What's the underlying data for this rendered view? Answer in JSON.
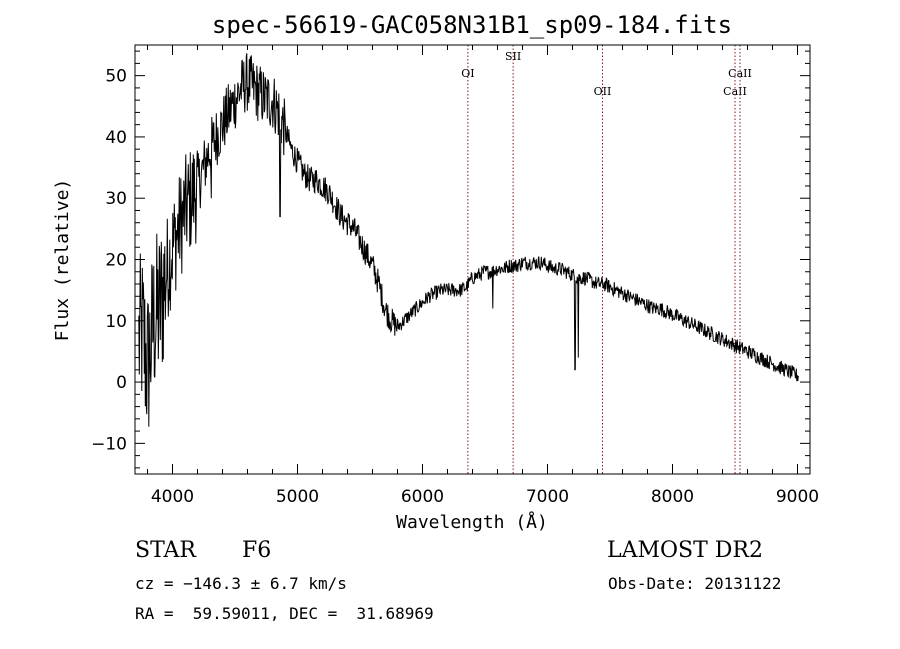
{
  "chart_data": {
    "type": "line",
    "title": "spec-56619-GAC058N31B1_sp09-184.fits",
    "xlabel": "Wavelength (Å)",
    "ylabel": "Flux (relative)",
    "xlim": [
      3700,
      9100
    ],
    "ylim": [
      -15,
      55
    ],
    "xticks": [
      4000,
      5000,
      6000,
      7000,
      8000,
      9000
    ],
    "yticks": [
      -10,
      0,
      10,
      20,
      30,
      40,
      50
    ],
    "grid": false,
    "series": [
      {
        "x": [
          3700,
          3760,
          3800,
          3850,
          3900,
          3950,
          4000,
          4050,
          4100,
          4150,
          4200,
          4250,
          4300,
          4350,
          4400,
          4450,
          4500,
          4550,
          4600,
          4650,
          4700,
          4750,
          4800,
          4850,
          4900,
          4950,
          5000,
          5050,
          5100,
          5150,
          5200,
          5250,
          5300,
          5350,
          5400,
          5450,
          5500,
          5550,
          5600,
          5650,
          5700,
          5750,
          5800,
          5850,
          5900,
          5950,
          6000,
          6050,
          6100,
          6150,
          6200,
          6250,
          6300,
          6350,
          6400,
          6450,
          6500,
          6550,
          6600,
          6650,
          6700,
          6750,
          6800,
          6850,
          6900,
          6950,
          7000,
          7050,
          7100,
          7150,
          7200,
          7250,
          7300,
          7350,
          7400,
          7450,
          7500,
          7550,
          7600,
          7650,
          7700,
          7750,
          7800,
          7850,
          7900,
          7950,
          8000,
          8050,
          8100,
          8150,
          8200,
          8250,
          8300,
          8350,
          8400,
          8450,
          8500,
          8550,
          8600,
          8650,
          8700,
          8750,
          8800,
          8850,
          8900,
          8950,
          9000
        ],
        "values": [
          5,
          8,
          2,
          10,
          12,
          18,
          22,
          25,
          28,
          30,
          32,
          35,
          38,
          40,
          42,
          44,
          46,
          48,
          49,
          48,
          47,
          46,
          46,
          44,
          41,
          38,
          36,
          34,
          33,
          33,
          32,
          31,
          29,
          27,
          26,
          25,
          23,
          21,
          19,
          16,
          12,
          10,
          9,
          10,
          11,
          12,
          13,
          14,
          14.5,
          15,
          15,
          15,
          15,
          15.5,
          17,
          17.5,
          18,
          18,
          18.5,
          18.5,
          19,
          19,
          19.5,
          19.5,
          19.5,
          19.5,
          19,
          18.5,
          18.5,
          18,
          17.5,
          17,
          17,
          16.5,
          16,
          16,
          15.5,
          15,
          14.5,
          14,
          13.5,
          13,
          12.5,
          12,
          12,
          11.5,
          11,
          10.5,
          10,
          9.5,
          9,
          8.5,
          8,
          7.5,
          7,
          6.5,
          6,
          5.5,
          5,
          4.5,
          4,
          3.5,
          3,
          2.5,
          2,
          1.5,
          1
        ]
      }
    ],
    "absorption_dips": [
      {
        "x": 4310,
        "value": 30
      },
      {
        "x": 4860,
        "value": 27
      },
      {
        "x": 6563,
        "value": 12
      },
      {
        "x": 7220,
        "value": 2
      },
      {
        "x": 7245,
        "value": 4
      }
    ],
    "line_markers": [
      {
        "label": "OI",
        "x": 6363,
        "label_row": 2
      },
      {
        "label": "SII",
        "x": 6725,
        "label_row": 1
      },
      {
        "label": "OII",
        "x": 7440,
        "label_row": 3
      },
      {
        "label": "CaII",
        "x": 8500,
        "label_row": 3
      },
      {
        "label": "CaII",
        "x": 8540,
        "label_row": 2
      }
    ]
  },
  "info": {
    "object_class": "STAR",
    "subclass": "F6",
    "survey": "LAMOST DR2",
    "cz": "cz = −146.3 ± 6.7 km/s",
    "obs_date": "Obs-Date: 20131122",
    "radec": "RA =  59.59011, DEC =  31.68969"
  },
  "colors": {
    "spectrum": "#000000",
    "marker_line": "#8b1a1a",
    "axes": "#000000"
  }
}
